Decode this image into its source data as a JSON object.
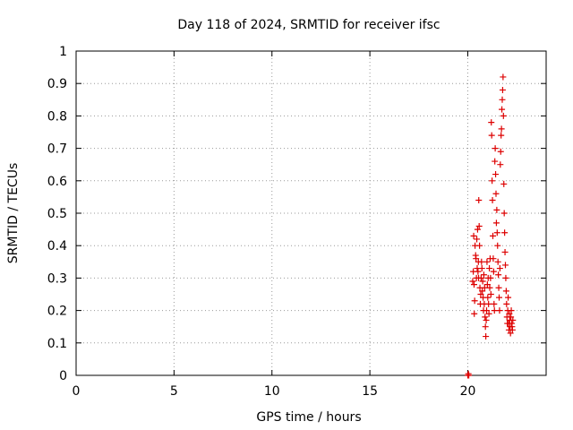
{
  "chart_data": {
    "type": "scatter",
    "title": "Day 118 of 2024, SRMTID for receiver ifsc",
    "xlabel": "GPS time / hours",
    "ylabel": "SRMTID / TECUs",
    "xlim": [
      0,
      24
    ],
    "ylim": [
      0,
      1
    ],
    "x_ticks": [
      0,
      5,
      10,
      15,
      20
    ],
    "x_tick_labels": [
      "0",
      "5",
      "10",
      "15",
      "20"
    ],
    "y_ticks": [
      0,
      0.1,
      0.2,
      0.3,
      0.4,
      0.5,
      0.6,
      0.7,
      0.8,
      0.9,
      1
    ],
    "y_tick_labels": [
      "0",
      "0.1",
      "0.2",
      "0.3",
      "0.4",
      "0.5",
      "0.6",
      "0.7",
      "0.8",
      "0.9",
      "1"
    ],
    "grid": true,
    "marker": "+",
    "series": [
      {
        "name": "SRMTID",
        "color": "#dd0000",
        "points": [
          [
            20.0,
            0.0
          ],
          [
            20.03,
            0.005
          ],
          [
            20.05,
            0.0
          ],
          [
            20.25,
            0.29
          ],
          [
            20.28,
            0.32
          ],
          [
            20.3,
            0.43
          ],
          [
            20.32,
            0.28
          ],
          [
            20.33,
            0.19
          ],
          [
            20.35,
            0.23
          ],
          [
            20.37,
            0.4
          ],
          [
            20.4,
            0.37
          ],
          [
            20.42,
            0.36
          ],
          [
            20.44,
            0.3
          ],
          [
            20.46,
            0.42
          ],
          [
            20.48,
            0.33
          ],
          [
            20.5,
            0.45
          ],
          [
            20.52,
            0.32
          ],
          [
            20.54,
            0.35
          ],
          [
            20.55,
            0.3
          ],
          [
            20.56,
            0.54
          ],
          [
            20.58,
            0.46
          ],
          [
            20.6,
            0.4
          ],
          [
            20.62,
            0.27
          ],
          [
            20.64,
            0.22
          ],
          [
            20.66,
            0.25
          ],
          [
            20.68,
            0.3
          ],
          [
            20.7,
            0.35
          ],
          [
            20.72,
            0.33
          ],
          [
            20.74,
            0.26
          ],
          [
            20.76,
            0.29
          ],
          [
            20.78,
            0.24
          ],
          [
            20.8,
            0.2
          ],
          [
            20.82,
            0.31
          ],
          [
            20.84,
            0.22
          ],
          [
            20.86,
            0.27
          ],
          [
            20.88,
            0.18
          ],
          [
            20.9,
            0.15
          ],
          [
            20.92,
            0.12
          ],
          [
            20.94,
            0.17
          ],
          [
            20.96,
            0.2
          ],
          [
            20.98,
            0.35
          ],
          [
            21.0,
            0.28
          ],
          [
            21.02,
            0.24
          ],
          [
            21.04,
            0.3
          ],
          [
            21.06,
            0.22
          ],
          [
            21.08,
            0.19
          ],
          [
            21.1,
            0.33
          ],
          [
            21.12,
            0.27
          ],
          [
            21.14,
            0.36
          ],
          [
            21.16,
            0.3
          ],
          [
            21.18,
            0.25
          ],
          [
            21.2,
            0.78
          ],
          [
            21.22,
            0.74
          ],
          [
            21.24,
            0.6
          ],
          [
            21.26,
            0.54
          ],
          [
            21.28,
            0.43
          ],
          [
            21.3,
            0.36
          ],
          [
            21.32,
            0.32
          ],
          [
            21.34,
            0.22
          ],
          [
            21.36,
            0.2
          ],
          [
            21.38,
            0.66
          ],
          [
            21.4,
            0.7
          ],
          [
            21.42,
            0.62
          ],
          [
            21.44,
            0.56
          ],
          [
            21.46,
            0.47
          ],
          [
            21.48,
            0.51
          ],
          [
            21.5,
            0.44
          ],
          [
            21.52,
            0.4
          ],
          [
            21.54,
            0.35
          ],
          [
            21.56,
            0.31
          ],
          [
            21.58,
            0.27
          ],
          [
            21.6,
            0.24
          ],
          [
            21.62,
            0.2
          ],
          [
            21.64,
            0.33
          ],
          [
            21.66,
            0.65
          ],
          [
            21.68,
            0.69
          ],
          [
            21.7,
            0.74
          ],
          [
            21.72,
            0.76
          ],
          [
            21.74,
            0.82
          ],
          [
            21.76,
            0.85
          ],
          [
            21.78,
            0.88
          ],
          [
            21.8,
            0.92
          ],
          [
            21.82,
            0.8
          ],
          [
            21.84,
            0.59
          ],
          [
            21.86,
            0.5
          ],
          [
            21.88,
            0.44
          ],
          [
            21.9,
            0.38
          ],
          [
            21.92,
            0.34
          ],
          [
            21.94,
            0.3
          ],
          [
            21.96,
            0.26
          ],
          [
            21.98,
            0.22
          ],
          [
            22.0,
            0.18
          ],
          [
            22.02,
            0.16
          ],
          [
            22.04,
            0.2
          ],
          [
            22.06,
            0.24
          ],
          [
            22.08,
            0.16
          ],
          [
            22.1,
            0.14
          ],
          [
            22.12,
            0.19
          ],
          [
            22.14,
            0.17
          ],
          [
            22.16,
            0.15
          ],
          [
            22.18,
            0.13
          ],
          [
            22.2,
            0.18
          ],
          [
            22.22,
            0.2
          ],
          [
            22.24,
            0.16
          ],
          [
            22.26,
            0.15
          ],
          [
            22.28,
            0.14
          ],
          [
            22.3,
            0.17
          ]
        ]
      }
    ]
  }
}
